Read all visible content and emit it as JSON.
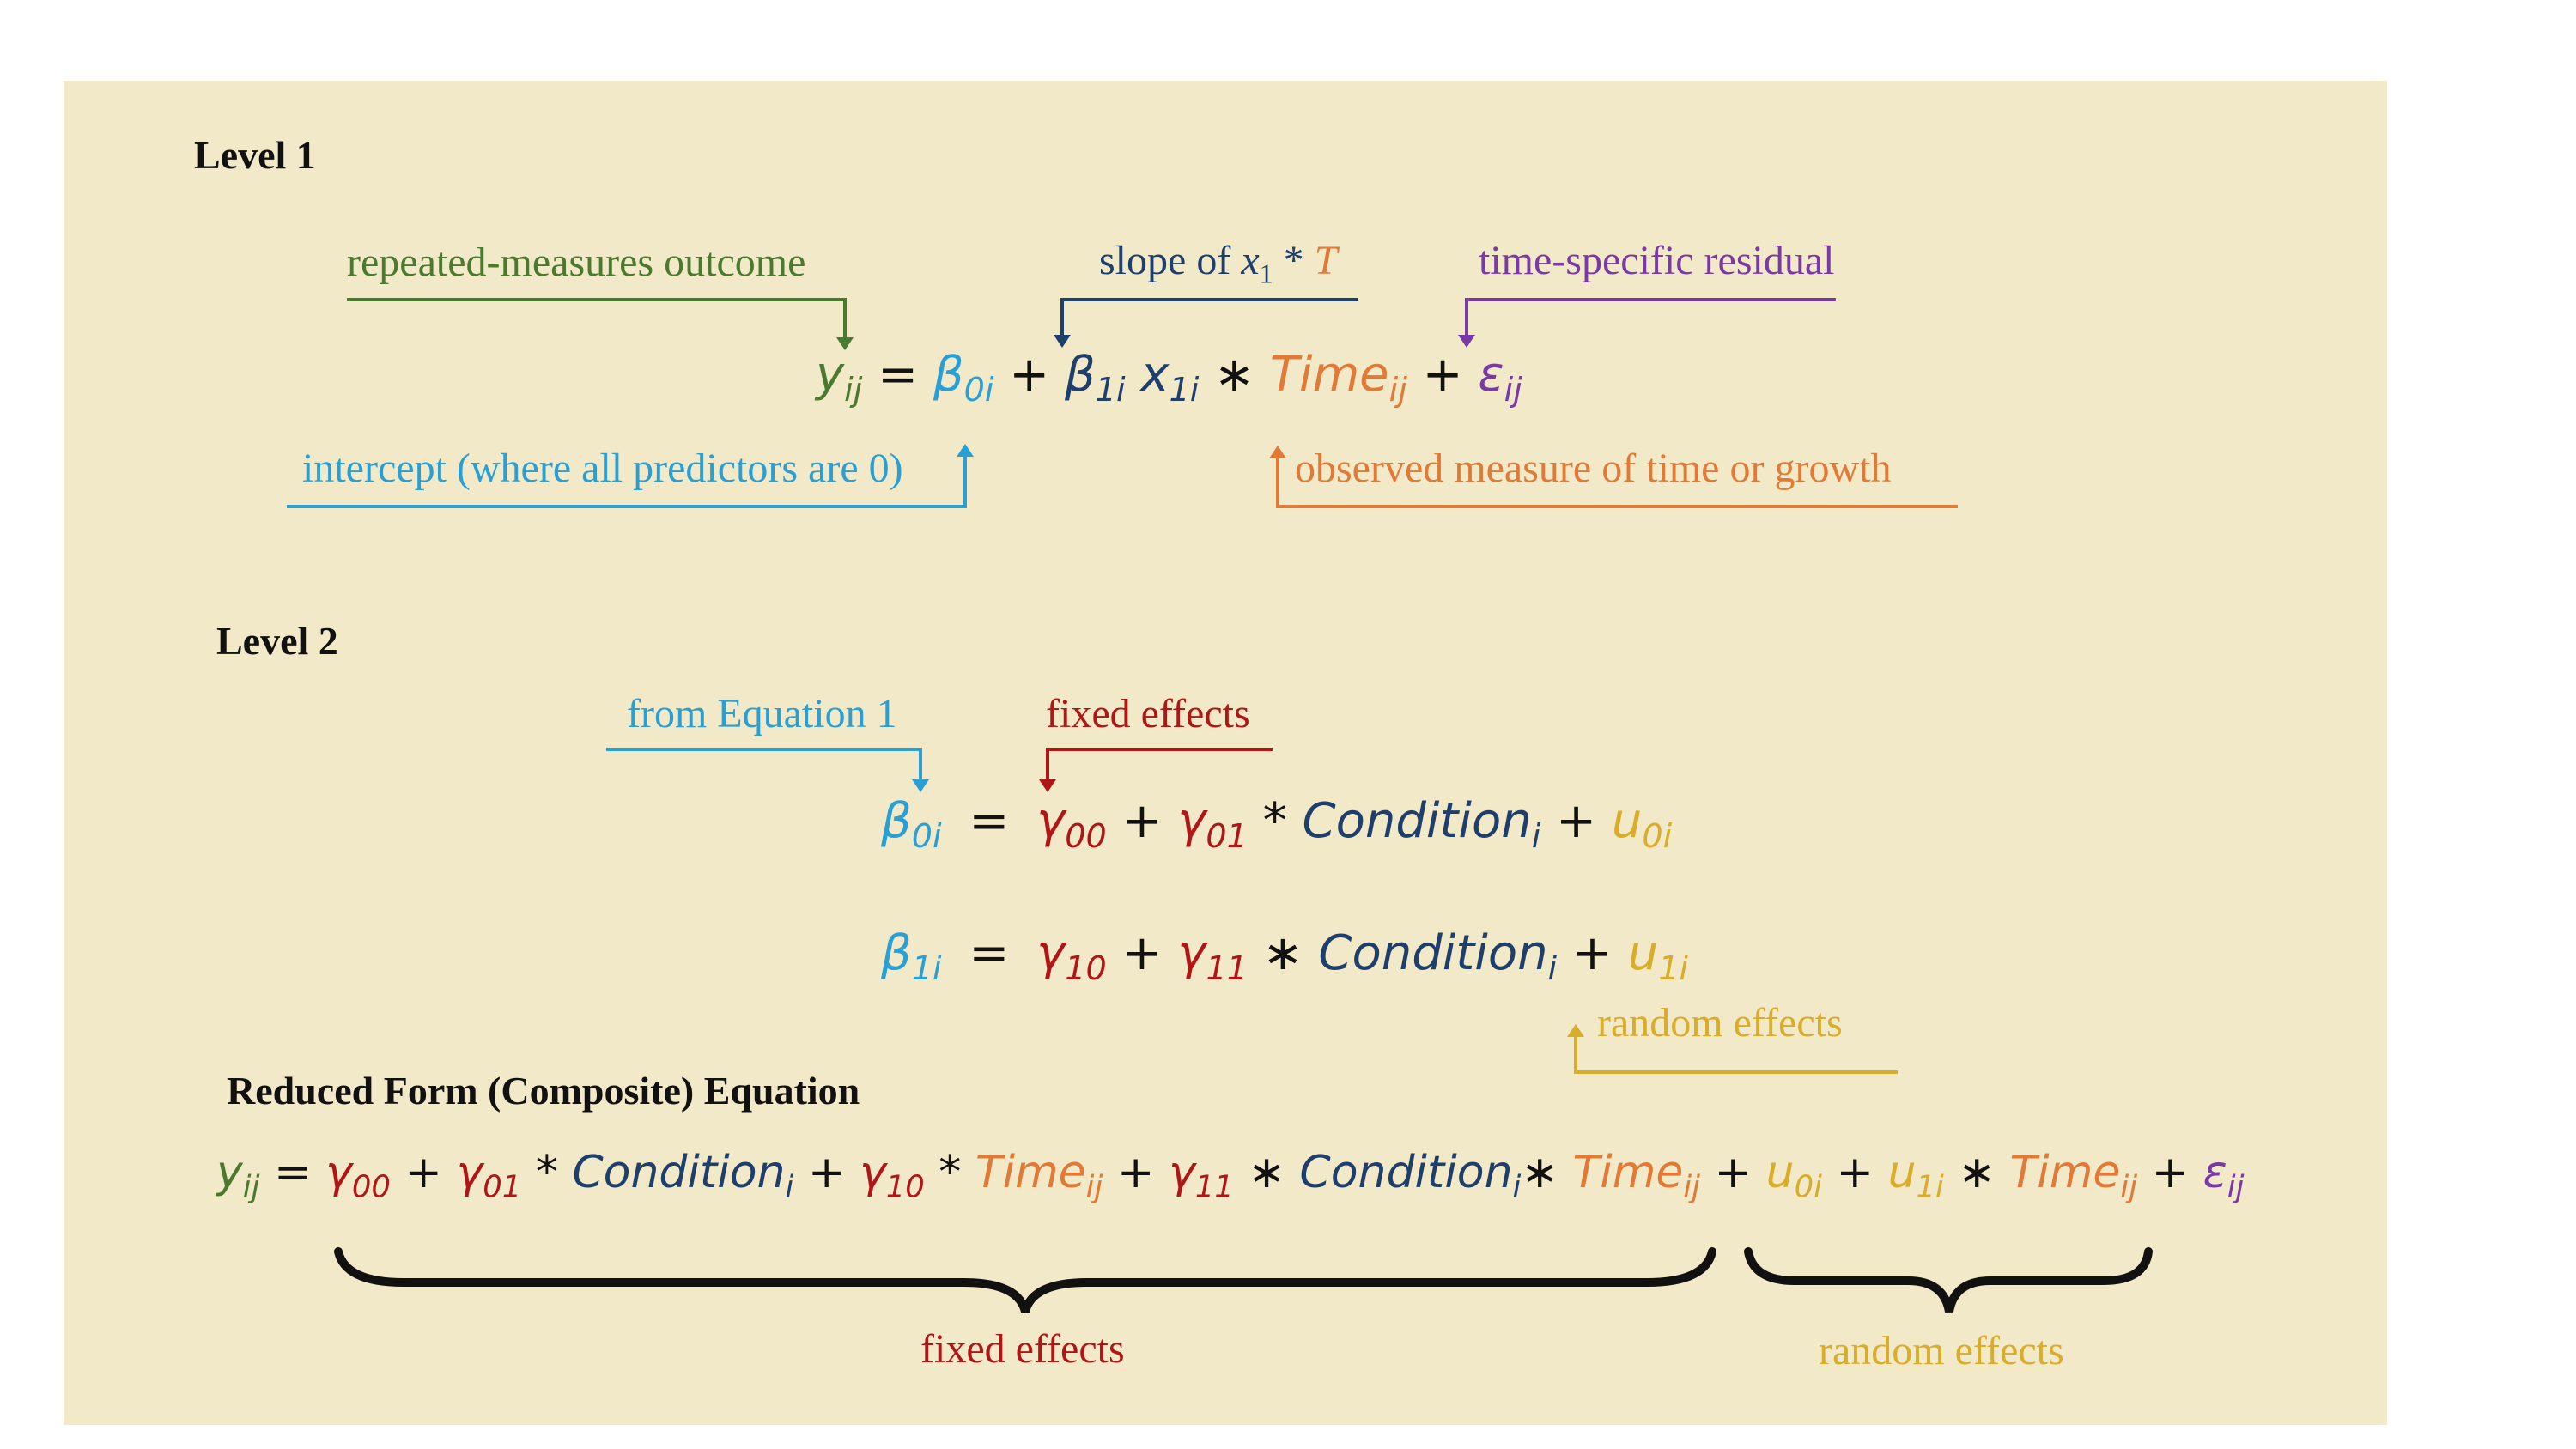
{
  "colors": {
    "panel": "#f2e9c9",
    "green": "#4a7a2e",
    "cyan": "#2a9fd4",
    "navy": "#1e3f6b",
    "orange": "#e07a36",
    "purple": "#7a3aa6",
    "red": "#b01616",
    "gold": "#d9ac2a",
    "black": "#111111"
  },
  "level1": {
    "heading": "Level 1",
    "annotations": {
      "outcome": "repeated-measures outcome",
      "slope_prefix": "slope of ",
      "slope_x": "x",
      "slope_x_sub": "1",
      "slope_star": " * ",
      "slope_T": "T",
      "residual": "time-specific residual",
      "intercept": "intercept (where all predictors are 0)",
      "time": "observed measure of time or growth"
    },
    "equation": {
      "y": "y",
      "y_sub": "ij",
      "eq": "=",
      "b0": "β",
      "b0_sub": "0i",
      "plus1": "+",
      "b1": "β",
      "b1_sub": "1i",
      "x1": "x",
      "x1_sub": "1i",
      "star": "∗",
      "time": "Time",
      "time_sub": "ij",
      "plus2": "+",
      "eps": "ε",
      "eps_sub": "ij"
    }
  },
  "level2": {
    "heading": "Level 2",
    "annotations": {
      "from_eq": "from Equation 1",
      "fixed": "fixed effects",
      "random": "random effects"
    },
    "eq1": {
      "b": "β",
      "b_sub": "0i",
      "eq": "=",
      "g00": "γ",
      "g00_sub": "00",
      "plus1": "+",
      "g01": "γ",
      "g01_sub": "01",
      "star": "*",
      "cond": "Condition",
      "cond_sub": "i",
      "plus2": "+",
      "u": "u",
      "u_sub": "0i"
    },
    "eq2": {
      "b": "β",
      "b_sub": "1i",
      "eq": "=",
      "g10": "γ",
      "g10_sub": "10",
      "plus1": "+",
      "g11": "γ",
      "g11_sub": "11",
      "star": "∗",
      "cond": "Condition",
      "cond_sub": "i",
      "plus2": "+",
      "u": "u",
      "u_sub": "1i"
    }
  },
  "reduced": {
    "heading": "Reduced Form (Composite) Equation",
    "equation": {
      "y": "y",
      "y_sub": "ij",
      "eq": "=",
      "g00": "γ",
      "g00_sub": "00",
      "p1": "+",
      "g01": "γ",
      "g01_sub": "01",
      "s1": "*",
      "cond1": "Condition",
      "cond1_sub": "i",
      "p2": "+",
      "g10": "γ",
      "g10_sub": "10",
      "s2": "*",
      "time1": "Time",
      "time1_sub": "ij",
      "p3": "+",
      "g11": "γ",
      "g11_sub": "11",
      "s3": "∗",
      "cond2": "Condition",
      "cond2_sub": "i",
      "s4": "∗",
      "time2": "Time",
      "time2_sub": "ij",
      "p4": "+",
      "u0": "u",
      "u0_sub": "0i",
      "p5": "+",
      "u1": "u",
      "u1_sub": "1i",
      "s5": "∗",
      "time3": "Time",
      "time3_sub": "ij",
      "p6": "+",
      "eps": "ε",
      "eps_sub": "ij"
    },
    "fixed_label": "fixed effects",
    "random_label": "random effects"
  }
}
